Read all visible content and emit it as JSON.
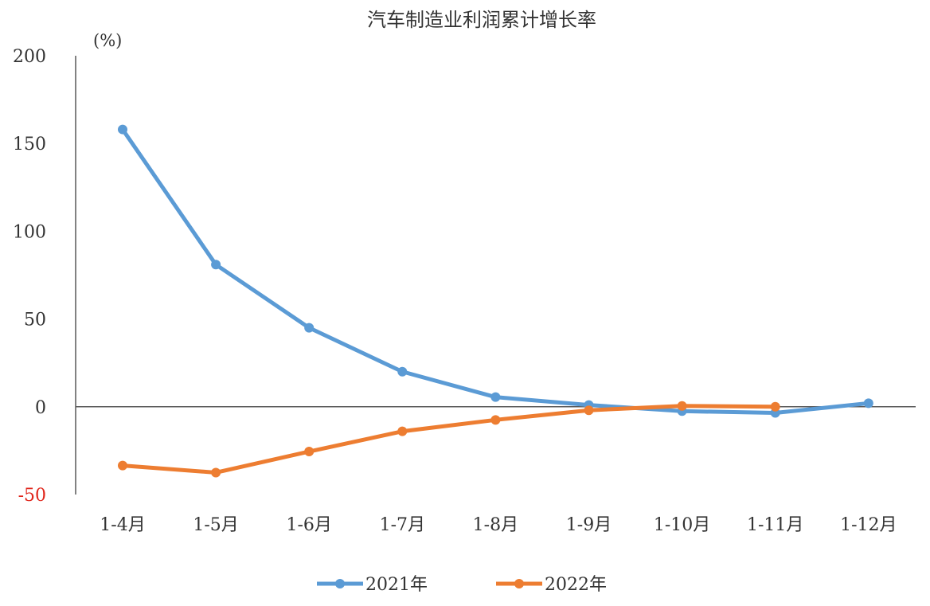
{
  "chart_data": {
    "type": "line",
    "title": "汽车制造业利润累计增长率",
    "unit_label": "(%)",
    "categories": [
      "1-4月",
      "1-5月",
      "1-6月",
      "1-7月",
      "1-8月",
      "1-9月",
      "1-10月",
      "1-11月",
      "1-12月"
    ],
    "ylim": [
      -50,
      200
    ],
    "yticks": [
      200,
      150,
      100,
      50,
      0,
      -50
    ],
    "negative_tick_color": "#e0251b",
    "grid": false,
    "legend_position": "bottom",
    "series": [
      {
        "name": "2021年",
        "color": "#5b9bd5",
        "values": [
          158,
          81,
          45,
          20,
          5.5,
          1,
          -2.5,
          -3.5,
          2
        ]
      },
      {
        "name": "2022年",
        "color": "#ed7d31",
        "values": [
          -33.5,
          -37.5,
          -25.5,
          -14,
          -7.5,
          -2,
          0.5,
          0,
          null
        ]
      }
    ]
  }
}
